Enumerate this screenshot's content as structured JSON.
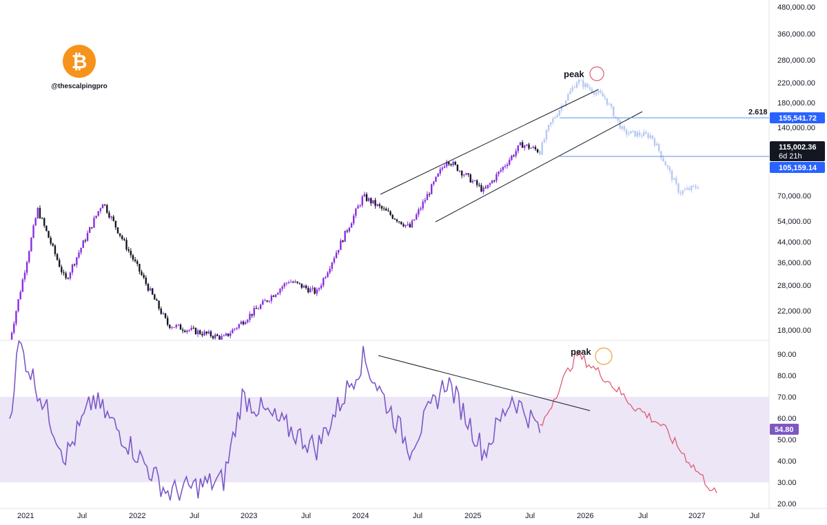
{
  "logo": {
    "icon": "bitcoin-icon",
    "symbol": "₿",
    "handle": "@thescalpingpro",
    "color": "#f7931a"
  },
  "colors": {
    "bull": "#8b2be2",
    "bear": "#131722",
    "projection": "#b7c8f3",
    "rsi_line": "#7b57c7",
    "rsi_projection": "#e05a6e",
    "rsi_band": "#ece6f7",
    "blue_line": "#2e6de6",
    "peak_circle_price": "#e05a6e",
    "peak_circle_rsi": "#f0a030"
  },
  "price_axis": {
    "ticks": [
      "480,000.00",
      "360,000.00",
      "280,000.00",
      "220,000.00",
      "180,000.00",
      "140,000.00",
      "115,002.36",
      "105,159.14",
      "70,000.00",
      "54,000.00",
      "44,000.00",
      "36,000.00",
      "28,000.00",
      "22,000.00",
      "18,000.00"
    ],
    "current_price": "115,002.36",
    "countdown": "6d 21h",
    "fib_price": "155,541.72",
    "support_price": "105,159.14"
  },
  "rsi_axis": {
    "ticks": [
      "90.00",
      "80.00",
      "70.00",
      "60.00",
      "50.00",
      "40.00",
      "30.00",
      "20.00"
    ],
    "current": "54.80"
  },
  "time_axis": {
    "labels": [
      "2021",
      "Jul",
      "2022",
      "Jul",
      "2023",
      "Jul",
      "2024",
      "Jul",
      "2025",
      "Jul",
      "2026",
      "Jul",
      "2027",
      "Jul"
    ]
  },
  "annotations": {
    "price_peak": "peak",
    "rsi_peak": "peak",
    "fib_level": "2.618"
  },
  "chart_data": [
    {
      "type": "candlestick",
      "scale": "log",
      "ylim": [
        16000,
        480000
      ],
      "x_range": [
        "2021-01",
        "2027-07"
      ],
      "key_points": [
        {
          "date": "2021-01",
          "price": 16000
        },
        {
          "date": "2021-04",
          "price": 63000
        },
        {
          "date": "2021-07",
          "price": 30000
        },
        {
          "date": "2021-11",
          "price": 68000
        },
        {
          "date": "2022-06",
          "price": 19000
        },
        {
          "date": "2022-12",
          "price": 16500
        },
        {
          "date": "2023-07",
          "price": 30000
        },
        {
          "date": "2023-10",
          "price": 26500
        },
        {
          "date": "2024-03",
          "price": 72000
        },
        {
          "date": "2024-08",
          "price": 52000
        },
        {
          "date": "2024-12",
          "price": 106000
        },
        {
          "date": "2025-04",
          "price": 76000
        },
        {
          "date": "2025-08",
          "price": 124000
        },
        {
          "date": "2025-10",
          "price": 115002.36
        }
      ],
      "projection": [
        {
          "date": "2025-11",
          "price": 150000
        },
        {
          "date": "2026-02",
          "price": 240000
        },
        {
          "date": "2026-05",
          "price": 200000
        },
        {
          "date": "2026-07",
          "price": 140000
        },
        {
          "date": "2026-10",
          "price": 135000
        },
        {
          "date": "2027-01",
          "price": 75000
        },
        {
          "date": "2027-03",
          "price": 80000
        }
      ],
      "horizontal_levels": [
        {
          "label": "2.618",
          "price": 155541.72
        },
        {
          "label": "",
          "price": 105159.14
        }
      ]
    },
    {
      "type": "line",
      "series": [
        {
          "name": "",
          "values": []
        }
      ],
      "ylim": [
        20,
        95
      ],
      "band": [
        30,
        70
      ],
      "key_points": [
        {
          "date": "2021-01",
          "value": 60
        },
        {
          "date": "2021-02",
          "value": 95
        },
        {
          "date": "2021-07",
          "value": 42
        },
        {
          "date": "2021-10",
          "value": 69
        },
        {
          "date": "2022-06",
          "value": 25
        },
        {
          "date": "2022-12",
          "value": 31
        },
        {
          "date": "2023-02",
          "value": 70
        },
        {
          "date": "2023-10",
          "value": 46
        },
        {
          "date": "2024-03",
          "value": 88
        },
        {
          "date": "2024-08",
          "value": 46
        },
        {
          "date": "2024-12",
          "value": 78
        },
        {
          "date": "2025-04",
          "value": 44
        },
        {
          "date": "2025-07",
          "value": 70
        },
        {
          "date": "2025-10",
          "value": 54.8
        }
      ],
      "projection": [
        {
          "date": "2025-12",
          "value": 74
        },
        {
          "date": "2026-02",
          "value": 90
        },
        {
          "date": "2026-05",
          "value": 79
        },
        {
          "date": "2026-08",
          "value": 66
        },
        {
          "date": "2026-11",
          "value": 57
        },
        {
          "date": "2027-02",
          "value": 40
        },
        {
          "date": "2027-05",
          "value": 24
        }
      ]
    }
  ]
}
